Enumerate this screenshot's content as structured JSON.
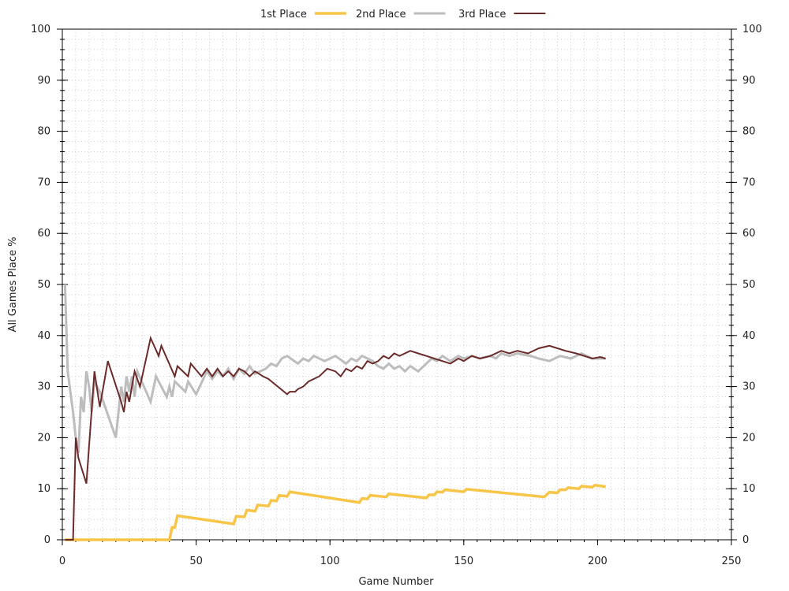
{
  "chart_data": {
    "type": "line",
    "xlabel": "Game Number",
    "ylabel": "All Games Place %",
    "xlim": [
      0,
      250
    ],
    "ylim": [
      0,
      100
    ],
    "x_ticks": [
      0,
      50,
      100,
      150,
      200,
      250
    ],
    "y_ticks": [
      0,
      10,
      20,
      30,
      40,
      50,
      60,
      70,
      80,
      90,
      100
    ],
    "grid": true,
    "legend_position": "top",
    "series": [
      {
        "name": "1st Place",
        "color": "#f7c548",
        "points": [
          [
            1,
            0
          ],
          [
            40,
            0
          ],
          [
            41,
            2.4
          ],
          [
            42,
            2.4
          ],
          [
            43,
            4.7
          ],
          [
            64,
            3.1
          ],
          [
            65,
            4.6
          ],
          [
            68,
            4.5
          ],
          [
            69,
            5.8
          ],
          [
            72,
            5.6
          ],
          [
            73,
            6.8
          ],
          [
            77,
            6.6
          ],
          [
            78,
            7.7
          ],
          [
            80,
            7.6
          ],
          [
            81,
            8.7
          ],
          [
            84,
            8.5
          ],
          [
            85,
            9.4
          ],
          [
            111,
            7.3
          ],
          [
            112,
            8.1
          ],
          [
            114,
            8.0
          ],
          [
            115,
            8.7
          ],
          [
            121,
            8.4
          ],
          [
            122,
            9.0
          ],
          [
            136,
            8.2
          ],
          [
            137,
            8.8
          ],
          [
            139,
            8.8
          ],
          [
            140,
            9.4
          ],
          [
            142,
            9.3
          ],
          [
            143,
            9.8
          ],
          [
            150,
            9.4
          ],
          [
            151,
            9.9
          ],
          [
            180,
            8.4
          ],
          [
            182,
            9.3
          ],
          [
            185,
            9.2
          ],
          [
            186,
            9.8
          ],
          [
            188,
            9.8
          ],
          [
            189,
            10.2
          ],
          [
            193,
            10.0
          ],
          [
            194,
            10.5
          ],
          [
            198,
            10.3
          ],
          [
            199,
            10.7
          ],
          [
            203,
            10.4
          ]
        ]
      },
      {
        "name": "2nd Place",
        "color": "#bdbdbd",
        "points": [
          [
            1,
            50
          ],
          [
            2,
            33
          ],
          [
            4,
            25
          ],
          [
            5,
            20
          ],
          [
            6,
            17
          ],
          [
            7,
            28
          ],
          [
            8,
            25
          ],
          [
            9,
            33
          ],
          [
            10,
            30
          ],
          [
            11,
            25
          ],
          [
            12,
            31
          ],
          [
            14,
            29
          ],
          [
            20,
            20
          ],
          [
            22,
            30
          ],
          [
            23,
            27
          ],
          [
            24,
            32
          ],
          [
            25,
            29
          ],
          [
            26,
            32
          ],
          [
            27,
            28
          ],
          [
            28,
            33
          ],
          [
            33,
            27
          ],
          [
            35,
            32
          ],
          [
            39,
            28
          ],
          [
            40,
            30
          ],
          [
            41,
            28
          ],
          [
            42,
            31
          ],
          [
            46,
            29
          ],
          [
            47,
            31
          ],
          [
            50,
            28.5
          ],
          [
            54,
            33
          ],
          [
            56,
            31.5
          ],
          [
            58,
            33
          ],
          [
            60,
            32
          ],
          [
            62,
            33.5
          ],
          [
            64,
            31.5
          ],
          [
            66,
            33.5
          ],
          [
            68,
            32.5
          ],
          [
            70,
            34
          ],
          [
            72,
            32.5
          ],
          [
            76,
            33.5
          ],
          [
            78,
            34.5
          ],
          [
            80,
            34
          ],
          [
            82,
            35.5
          ],
          [
            84,
            36
          ],
          [
            88,
            34.5
          ],
          [
            90,
            35.5
          ],
          [
            92,
            35
          ],
          [
            94,
            36
          ],
          [
            98,
            35
          ],
          [
            102,
            36
          ],
          [
            106,
            34.5
          ],
          [
            108,
            35.5
          ],
          [
            110,
            35
          ],
          [
            112,
            36
          ],
          [
            116,
            35
          ],
          [
            118,
            34
          ],
          [
            120,
            33.5
          ],
          [
            122,
            34.5
          ],
          [
            124,
            33.5
          ],
          [
            126,
            34
          ],
          [
            128,
            33
          ],
          [
            130,
            34
          ],
          [
            133,
            33
          ],
          [
            136,
            34.5
          ],
          [
            138,
            35.5
          ],
          [
            140,
            35
          ],
          [
            142,
            36
          ],
          [
            145,
            35
          ],
          [
            148,
            36
          ],
          [
            150,
            35.5
          ],
          [
            153,
            36
          ],
          [
            156,
            35.5
          ],
          [
            160,
            36
          ],
          [
            162,
            35.5
          ],
          [
            164,
            36.5
          ],
          [
            167,
            36
          ],
          [
            170,
            36.5
          ],
          [
            175,
            36
          ],
          [
            178,
            35.5
          ],
          [
            182,
            35
          ],
          [
            186,
            36
          ],
          [
            190,
            35.5
          ],
          [
            194,
            36.5
          ],
          [
            198,
            35.5
          ],
          [
            203,
            35.5
          ]
        ]
      },
      {
        "name": "3rd Place",
        "color": "#6b2b2b",
        "points": [
          [
            1,
            0
          ],
          [
            4,
            0
          ],
          [
            5,
            20
          ],
          [
            6,
            16
          ],
          [
            9,
            11
          ],
          [
            12,
            33
          ],
          [
            14,
            26
          ],
          [
            17,
            35
          ],
          [
            22,
            27
          ],
          [
            23,
            25
          ],
          [
            24,
            29
          ],
          [
            25,
            27
          ],
          [
            27,
            33
          ],
          [
            29,
            30
          ],
          [
            33,
            39.5
          ],
          [
            36,
            36
          ],
          [
            37,
            38
          ],
          [
            42,
            32
          ],
          [
            43,
            34
          ],
          [
            47,
            32
          ],
          [
            48,
            34.5
          ],
          [
            52,
            32
          ],
          [
            54,
            33.5
          ],
          [
            56,
            32
          ],
          [
            58,
            33.5
          ],
          [
            60,
            32
          ],
          [
            62,
            33
          ],
          [
            64,
            32
          ],
          [
            66,
            33.5
          ],
          [
            68,
            33
          ],
          [
            70,
            32
          ],
          [
            72,
            33
          ],
          [
            75,
            32
          ],
          [
            77,
            31.5
          ],
          [
            84,
            28.5
          ],
          [
            85,
            29
          ],
          [
            87,
            29
          ],
          [
            88,
            29.5
          ],
          [
            90,
            30
          ],
          [
            92,
            31
          ],
          [
            96,
            32
          ],
          [
            99,
            33.5
          ],
          [
            102,
            33
          ],
          [
            104,
            32
          ],
          [
            106,
            33.5
          ],
          [
            108,
            33
          ],
          [
            110,
            34
          ],
          [
            112,
            33.5
          ],
          [
            114,
            35
          ],
          [
            116,
            34.5
          ],
          [
            118,
            35
          ],
          [
            120,
            36
          ],
          [
            122,
            35.5
          ],
          [
            124,
            36.5
          ],
          [
            126,
            36
          ],
          [
            130,
            37
          ],
          [
            133,
            36.5
          ],
          [
            136,
            36
          ],
          [
            139,
            35.5
          ],
          [
            142,
            35
          ],
          [
            145,
            34.5
          ],
          [
            148,
            35.5
          ],
          [
            150,
            35
          ],
          [
            153,
            36
          ],
          [
            156,
            35.5
          ],
          [
            160,
            36
          ],
          [
            164,
            37
          ],
          [
            167,
            36.5
          ],
          [
            170,
            37
          ],
          [
            174,
            36.5
          ],
          [
            178,
            37.5
          ],
          [
            182,
            38
          ],
          [
            185,
            37.5
          ],
          [
            188,
            37
          ],
          [
            192,
            36.5
          ],
          [
            195,
            36
          ],
          [
            198,
            35.5
          ],
          [
            201,
            35.8
          ],
          [
            203,
            35.5
          ]
        ]
      }
    ]
  }
}
